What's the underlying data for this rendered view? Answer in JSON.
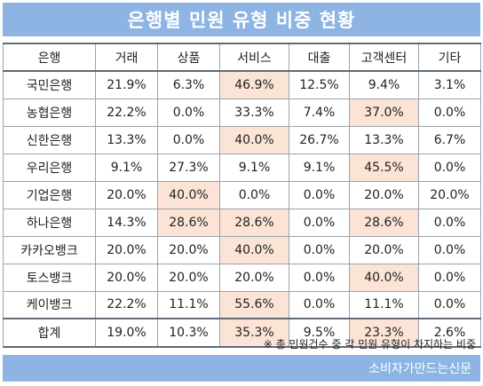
{
  "title": "은행별 민원 유형 비중 현황",
  "columns": [
    "은행",
    "거래",
    "상품",
    "서비스",
    "대출",
    "고객센터",
    "기타"
  ],
  "rows": [
    {
      "bank": "국민은행",
      "values": [
        "21.9%",
        "6.3%",
        "46.9%",
        "12.5%",
        "9.4%",
        "3.1%"
      ],
      "highlight_index": 2
    },
    {
      "bank": "농협은행",
      "values": [
        "22.2%",
        "0.0%",
        "33.3%",
        "7.4%",
        "37.0%",
        "0.0%"
      ],
      "highlight_index": 4
    },
    {
      "bank": "신한은행",
      "values": [
        "13.3%",
        "0.0%",
        "40.0%",
        "26.7%",
        "13.3%",
        "6.7%"
      ],
      "highlight_index": 2
    },
    {
      "bank": "우리은행",
      "values": [
        "9.1%",
        "27.3%",
        "9.1%",
        "9.1%",
        "45.5%",
        "0.0%"
      ],
      "highlight_index": 4
    },
    {
      "bank": "기업은행",
      "values": [
        "20.0%",
        "40.0%",
        "0.0%",
        "0.0%",
        "20.0%",
        "20.0%"
      ],
      "highlight_index": 1
    },
    {
      "bank": "하나은행",
      "values": [
        "14.3%",
        "28.6%",
        "28.6%",
        "0.0%",
        "28.6%",
        "0.0%"
      ],
      "highlight_indices": [
        1,
        2,
        4
      ]
    },
    {
      "bank": "카카오뱅크",
      "values": [
        "20.0%",
        "20.0%",
        "40.0%",
        "0.0%",
        "20.0%",
        "0.0%"
      ],
      "highlight_index": 2
    },
    {
      "bank": "토스뱅크",
      "values": [
        "20.0%",
        "20.0%",
        "20.0%",
        "0.0%",
        "40.0%",
        "0.0%"
      ],
      "highlight_index": 4
    },
    {
      "bank": "케이뱅크",
      "values": [
        "22.2%",
        "11.1%",
        "55.6%",
        "0.0%",
        "11.1%",
        "0.0%"
      ],
      "highlight_index": 2
    }
  ],
  "total": {
    "bank": "합계",
    "values": [
      "19.0%",
      "10.3%",
      "35.3%",
      "9.5%",
      "23.3%",
      "2.6%"
    ],
    "highlight_indices": [
      2,
      4
    ]
  },
  "footnote": "※ 총 민원건수 중 각 민원 유형이 차지하는 비중",
  "source": "소비자가만드는신문",
  "colors": {
    "header_blue": "#8db4e2",
    "highlight": "#fbe4d5",
    "border": "#9aa3ad"
  }
}
